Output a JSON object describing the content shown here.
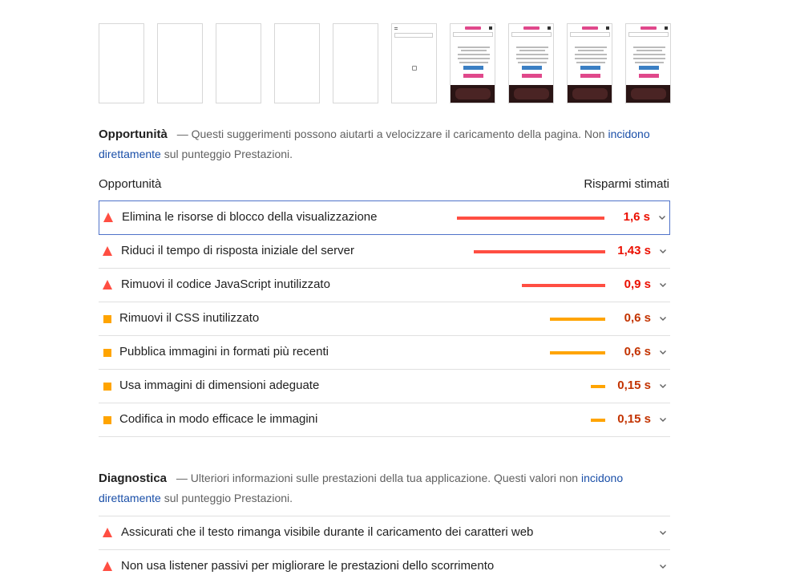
{
  "filmstrip": {
    "frames": [
      {
        "state": "blank"
      },
      {
        "state": "blank"
      },
      {
        "state": "blank"
      },
      {
        "state": "blank"
      },
      {
        "state": "blank"
      },
      {
        "state": "loading"
      },
      {
        "state": "loaded"
      },
      {
        "state": "loaded"
      },
      {
        "state": "loaded"
      },
      {
        "state": "loaded"
      }
    ]
  },
  "opportunities": {
    "title": "Opportunità",
    "desc_prefix": "— Questi suggerimenti possono aiutarti a velocizzare il caricamento della pagina. Non ",
    "link1": "incidono",
    "link2": "direttamente",
    "desc_suffix": " sul punteggio Prestazioni.",
    "col_left": "Opportunità",
    "col_right": "Risparmi stimati",
    "items": [
      {
        "title": "Elimina le risorse di blocco della visualizzazione",
        "saving": "1,6 s",
        "severity": "fail",
        "value": 1.6
      },
      {
        "title": "Riduci il tempo di risposta iniziale del server",
        "saving": "1,43 s",
        "severity": "fail",
        "value": 1.43
      },
      {
        "title": "Rimuovi il codice JavaScript inutilizzato",
        "saving": "0,9 s",
        "severity": "fail",
        "value": 0.9
      },
      {
        "title": "Rimuovi il CSS inutilizzato",
        "saving": "0,6 s",
        "severity": "average",
        "value": 0.6
      },
      {
        "title": "Pubblica immagini in formati più recenti",
        "saving": "0,6 s",
        "severity": "average",
        "value": 0.6
      },
      {
        "title": "Usa immagini di dimensioni adeguate",
        "saving": "0,15 s",
        "severity": "average",
        "value": 0.15
      },
      {
        "title": "Codifica in modo efficace le immagini",
        "saving": "0,15 s",
        "severity": "average",
        "value": 0.15
      }
    ]
  },
  "diagnostics": {
    "title": "Diagnostica",
    "desc_prefix": "— Ulteriori informazioni sulle prestazioni della tua applicazione. Questi valori non ",
    "link1": "incidono",
    "link2": "direttamente",
    "desc_suffix": " sul punteggio Prestazioni.",
    "items": [
      {
        "title": "Assicurati che il testo rimanga visibile durante il caricamento dei caratteri web",
        "severity": "fail"
      },
      {
        "title": "Non usa listener passivi per migliorare le prestazioni dello scorrimento",
        "severity": "fail"
      }
    ]
  },
  "colors": {
    "fail": "#ff4e42",
    "average": "#ffa400",
    "link": "#1a4fa8"
  }
}
